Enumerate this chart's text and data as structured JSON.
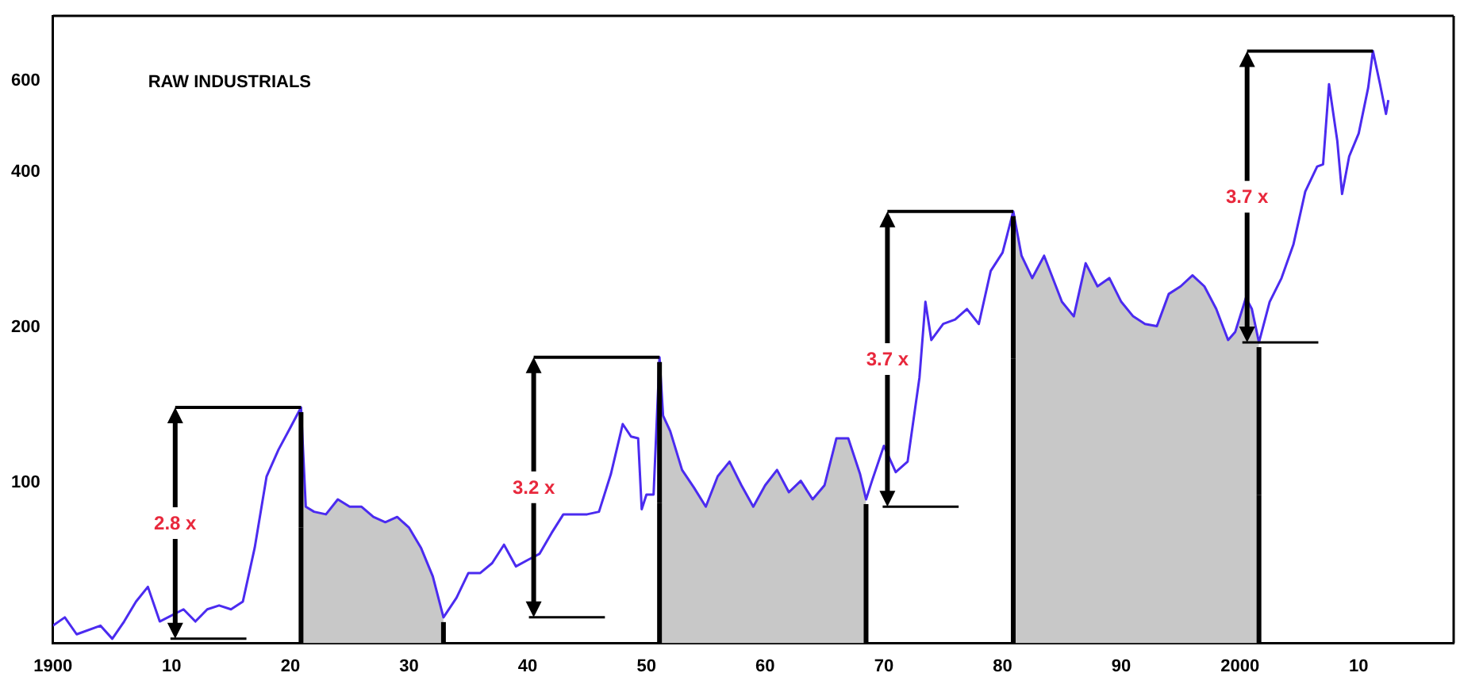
{
  "chart_data": {
    "type": "line",
    "title": "RAW INDUSTRIALS",
    "x": [
      1900,
      1901,
      1902,
      1904,
      1905,
      1906,
      1907,
      1908,
      1909,
      1911,
      1912,
      1913,
      1914,
      1915,
      1916,
      1917,
      1918,
      1919,
      1920,
      1920.9,
      1921.3,
      1922,
      1923,
      1924,
      1925,
      1926,
      1927,
      1928,
      1929,
      1930,
      1931,
      1932,
      1932.9,
      1934,
      1935,
      1936,
      1937,
      1938,
      1939,
      1940,
      1941,
      1942,
      1943,
      1944,
      1945,
      1946,
      1947,
      1948,
      1948.7,
      1949.3,
      1949.6,
      1950,
      1950.6,
      1951.1,
      1951.4,
      1952,
      1953,
      1954,
      1955,
      1956,
      1957,
      1958,
      1959,
      1960,
      1961,
      1962,
      1963,
      1964,
      1965,
      1966,
      1967,
      1968,
      1968.5,
      1969,
      1970,
      1971,
      1972,
      1973,
      1973.5,
      1974,
      1975,
      1976,
      1977,
      1978,
      1979,
      1980,
      1980.9,
      1981.6,
      1982.5,
      1983.5,
      1985,
      1986,
      1987,
      1988,
      1989,
      1990,
      1991,
      1992,
      1993,
      1994,
      1995,
      1996,
      1997,
      1998,
      1999,
      1999.6,
      2000.5,
      2001,
      2001.6,
      2002.5,
      2003.5,
      2004.5,
      2005.5,
      2006.5,
      2007,
      2007.5,
      2008.2,
      2008.6,
      2009.2,
      2010,
      2010.8,
      2011.2,
      2011.8,
      2012.3,
      2012.5
    ],
    "series": [
      {
        "type": "area",
        "color": "#c8c8c8",
        "x": [
          1920.9,
          1921.3,
          1922,
          1923,
          1924,
          1925,
          1926,
          1927,
          1928,
          1929,
          1930,
          1931,
          1932,
          1932.9
        ],
        "values": [
          140,
          90,
          88,
          87,
          93,
          90,
          90,
          86,
          84,
          86,
          82,
          75,
          66,
          55
        ]
      },
      {
        "type": "area",
        "color": "#c8c8c8",
        "x": [
          1951.1,
          1951.4,
          1952,
          1953,
          1954,
          1955,
          1956,
          1957,
          1958,
          1959,
          1960,
          1961,
          1962,
          1963,
          1964,
          1965,
          1966,
          1967,
          1968,
          1968.5
        ],
        "values": [
          175,
          135,
          126,
          106,
          98,
          90,
          103,
          110,
          99,
          90,
          99,
          106,
          96,
          101,
          93,
          99,
          122,
          122,
          104,
          93
        ]
      },
      {
        "type": "area",
        "color": "#c8c8c8",
        "x": [
          1980.9,
          1981.6,
          1982.5,
          1983.5,
          1985,
          1986,
          1987,
          1988,
          1989,
          1990,
          1991,
          1992,
          1993,
          1994,
          1995,
          1996,
          1997,
          1998,
          1999,
          1999.6,
          2000.5,
          2001,
          2001.6
        ],
        "values": [
          335,
          275,
          249,
          275,
          224,
          210,
          266,
          240,
          249,
          224,
          210,
          203,
          201,
          232,
          240,
          252,
          240,
          217,
          189,
          196,
          228,
          217,
          187
        ]
      },
      {
        "color": "#4b2bf0",
        "values": [
          53,
          55,
          51,
          53,
          50,
          54,
          59,
          63,
          54,
          57,
          54,
          57,
          58,
          57,
          59,
          75,
          103,
          116,
          128,
          140,
          90,
          88,
          87,
          93,
          90,
          90,
          86,
          84,
          86,
          82,
          75,
          66,
          55,
          60,
          67,
          67,
          70,
          76,
          69,
          71,
          73,
          80,
          87,
          87,
          87,
          88,
          104,
          130,
          123,
          122,
          89,
          95,
          95,
          175,
          135,
          126,
          106,
          98,
          90,
          103,
          110,
          99,
          90,
          99,
          106,
          96,
          101,
          93,
          99,
          122,
          122,
          104,
          93,
          101,
          118,
          105,
          110,
          160,
          224,
          189,
          203,
          207,
          217,
          203,
          257,
          279,
          335,
          275,
          249,
          275,
          224,
          210,
          266,
          240,
          249,
          224,
          210,
          203,
          201,
          232,
          240,
          252,
          240,
          217,
          189,
          196,
          228,
          217,
          187,
          224,
          249,
          289,
          366,
          409,
          413,
          590,
          458,
          362,
          428,
          474,
          581,
          684,
          590,
          517,
          550
        ]
      }
    ],
    "xlim": [
      1900,
      2018
    ],
    "xticks": [
      1900,
      {
        "value": 1910,
        "label": "10"
      },
      {
        "value": 1920,
        "label": "20"
      },
      {
        "value": 1930,
        "label": "30"
      },
      {
        "value": 1940,
        "label": "40"
      },
      {
        "value": 1950,
        "label": "50"
      },
      {
        "value": 1960,
        "label": "60"
      },
      {
        "value": 1970,
        "label": "70"
      },
      {
        "value": 1980,
        "label": "80"
      },
      {
        "value": 1990,
        "label": "90"
      },
      2000,
      {
        "value": 2010,
        "label": "10"
      }
    ],
    "ylim": [
      49,
      800
    ],
    "yticks": [
      100,
      200,
      400,
      600
    ],
    "log": "y",
    "grid": false,
    "legend": false,
    "annotations": [
      "2.8 x",
      "3.2 x",
      "3.7 x",
      "3.7 x"
    ]
  }
}
